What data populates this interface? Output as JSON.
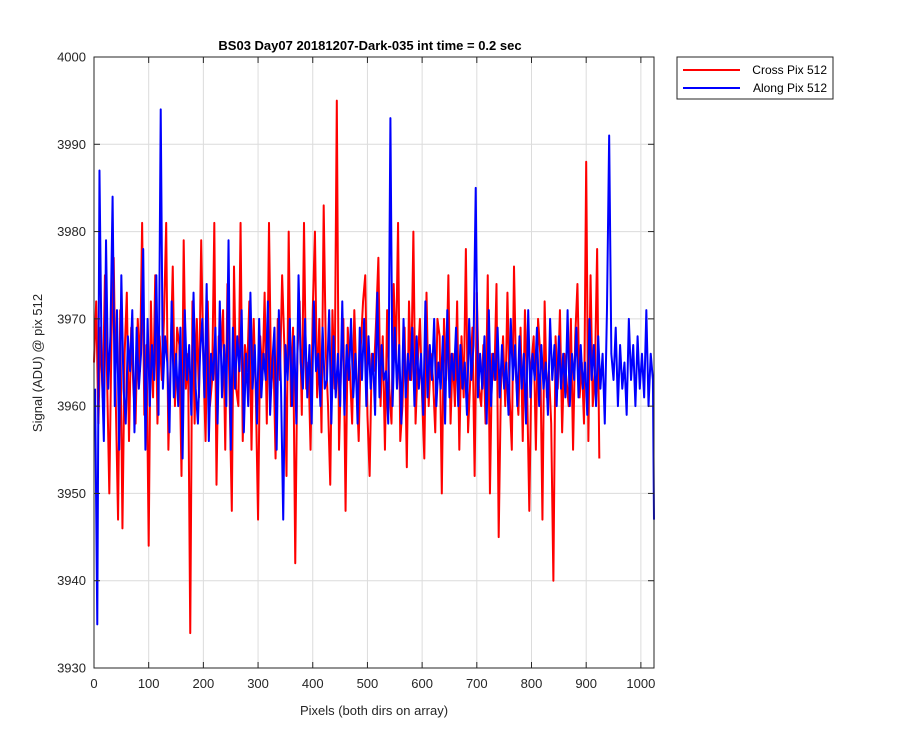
{
  "chart_data": {
    "type": "line",
    "title": "BS03 Day07 20181207-Dark-035 int time = 0.2 sec",
    "xlabel": "Pixels (both dirs on array)",
    "ylabel": "Signal (ADU) @ pix 512",
    "xlim": [
      0,
      1024
    ],
    "ylim": [
      3930,
      4000
    ],
    "x_ticks": [
      0,
      100,
      200,
      300,
      400,
      500,
      600,
      700,
      800,
      900,
      1000
    ],
    "x_tick_labels": [
      "0",
      "100",
      "200",
      "300",
      "400",
      "500",
      "600",
      "700",
      "800",
      "900",
      "1000"
    ],
    "y_ticks": [
      3930,
      3940,
      3950,
      3960,
      3970,
      3980,
      3990,
      4000
    ],
    "y_tick_labels": [
      "3930",
      "3940",
      "3950",
      "3960",
      "3970",
      "3980",
      "3990",
      "4000"
    ],
    "grid": true,
    "legend_position": "outside-top-right",
    "series": [
      {
        "name": "Cross Pix 512",
        "color": "#ff0000",
        "x_start": 0,
        "x_step": 4,
        "values": [
          3965,
          3972,
          3958,
          3969,
          3961,
          3975,
          3963,
          3950,
          3968,
          3977,
          3960,
          3947,
          3971,
          3946,
          3966,
          3973,
          3956,
          3969,
          3962,
          3958,
          3970,
          3964,
          3981,
          3959,
          3967,
          3944,
          3972,
          3961,
          3975,
          3958,
          3968,
          3963,
          3970,
          3981,
          3955,
          3965,
          3976,
          3960,
          3969,
          3967,
          3952,
          3979,
          3962,
          3966,
          3934,
          3972,
          3958,
          3970,
          3961,
          3979,
          3965,
          3956,
          3972,
          3960,
          3963,
          3981,
          3951,
          3968,
          3966,
          3971,
          3955,
          3974,
          3961,
          3948,
          3976,
          3962,
          3960,
          3981,
          3956,
          3967,
          3964,
          3972,
          3955,
          3970,
          3961,
          3947,
          3968,
          3963,
          3973,
          3958,
          3981,
          3962,
          3966,
          3954,
          3970,
          3963,
          3975,
          3967,
          3952,
          3980,
          3960,
          3969,
          3942,
          3966,
          3972,
          3959,
          3981,
          3962,
          3965,
          3955,
          3971,
          3980,
          3961,
          3970,
          3957,
          3983,
          3966,
          3960,
          3951,
          3971,
          3962,
          3995,
          3955,
          3965,
          3970,
          3948,
          3969,
          3964,
          3958,
          3971,
          3963,
          3956,
          3967,
          3972,
          3975,
          3959,
          3952,
          3966,
          3964,
          3970,
          3977,
          3960,
          3968,
          3955,
          3971,
          3962,
          3958,
          3974,
          3965,
          3981,
          3956,
          3960,
          3969,
          3953,
          3972,
          3963,
          3980,
          3958,
          3965,
          3970,
          3961,
          3954,
          3973,
          3960,
          3966,
          3963,
          3957,
          3970,
          3968,
          3950,
          3970,
          3963,
          3975,
          3958,
          3966,
          3960,
          3972,
          3955,
          3968,
          3961,
          3978,
          3957,
          3963,
          3969,
          3952,
          3973,
          3962,
          3960,
          3967,
          3958,
          3975,
          3950,
          3966,
          3963,
          3974,
          3945,
          3962,
          3968,
          3960,
          3973,
          3961,
          3955,
          3976,
          3963,
          3959,
          3969,
          3956,
          3971,
          3962,
          3948,
          3965,
          3968,
          3955,
          3970,
          3966,
          3947,
          3972,
          3961,
          3964,
          3958,
          3940,
          3968,
          3962,
          3971,
          3957,
          3966,
          3963,
          3960,
          3970,
          3955,
          3968,
          3974,
          3961,
          3965,
          3958,
          3988,
          3956,
          3975,
          3960,
          3964,
          3978,
          3954
        ]
      },
      {
        "name": "Along Pix 512",
        "color": "#0000ff",
        "x_start": 2,
        "x_step": 4,
        "values": [
          3962,
          3935,
          3987,
          3965,
          3956,
          3979,
          3962,
          3968,
          3984,
          3960,
          3971,
          3955,
          3975,
          3962,
          3958,
          3968,
          3964,
          3971,
          3957,
          3969,
          3962,
          3966,
          3978,
          3955,
          3970,
          3960,
          3967,
          3963,
          3975,
          3959,
          3994,
          3962,
          3968,
          3965,
          3957,
          3972,
          3961,
          3966,
          3960,
          3969,
          3954,
          3971,
          3963,
          3967,
          3959,
          3973,
          3962,
          3958,
          3966,
          3970,
          3961,
          3974,
          3956,
          3966,
          3963,
          3969,
          3958,
          3972,
          3961,
          3967,
          3960,
          3979,
          3955,
          3969,
          3962,
          3968,
          3964,
          3971,
          3957,
          3966,
          3960,
          3973,
          3962,
          3967,
          3958,
          3970,
          3961,
          3966,
          3963,
          3972,
          3959,
          3965,
          3969,
          3955,
          3971,
          3962,
          3947,
          3967,
          3963,
          3970,
          3960,
          3968,
          3958,
          3975,
          3965,
          3962,
          3970,
          3961,
          3967,
          3958,
          3972,
          3964,
          3966,
          3960,
          3969,
          3962,
          3963,
          3971,
          3958,
          3968,
          3961,
          3966,
          3960,
          3972,
          3959,
          3967,
          3963,
          3970,
          3961,
          3966,
          3958,
          3969,
          3963,
          3970,
          3960,
          3968,
          3962,
          3966,
          3959,
          3973,
          3961,
          3967,
          3963,
          3964,
          3958,
          3993,
          3960,
          3969,
          3962,
          3967,
          3958,
          3970,
          3961,
          3966,
          3963,
          3969,
          3960,
          3968,
          3962,
          3966,
          3959,
          3972,
          3961,
          3967,
          3963,
          3970,
          3960,
          3965,
          3962,
          3968,
          3958,
          3971,
          3961,
          3966,
          3963,
          3969,
          3960,
          3967,
          3962,
          3965,
          3959,
          3970,
          3963,
          3967,
          3985,
          3961,
          3966,
          3962,
          3968,
          3958,
          3971,
          3960,
          3966,
          3963,
          3969,
          3961,
          3967,
          3962,
          3965,
          3959,
          3970,
          3963,
          3967,
          3960,
          3968,
          3962,
          3966,
          3958,
          3971,
          3961,
          3966,
          3963,
          3969,
          3960,
          3967,
          3962,
          3965,
          3959,
          3970,
          3963,
          3967,
          3960,
          3968,
          3962,
          3966,
          3961,
          3971,
          3960,
          3966,
          3963,
          3969,
          3961,
          3967,
          3962,
          3965,
          3959,
          3970,
          3963,
          3967,
          3960,
          3968,
          3962,
          3966,
          3958,
          3971,
          3991,
          3966,
          3963,
          3969,
          3960,
          3967,
          3962,
          3965,
          3959,
          3970,
          3963,
          3967,
          3960,
          3968,
          3962,
          3966,
          3961,
          3971,
          3960,
          3966,
          3963,
          3947
        ]
      }
    ]
  }
}
